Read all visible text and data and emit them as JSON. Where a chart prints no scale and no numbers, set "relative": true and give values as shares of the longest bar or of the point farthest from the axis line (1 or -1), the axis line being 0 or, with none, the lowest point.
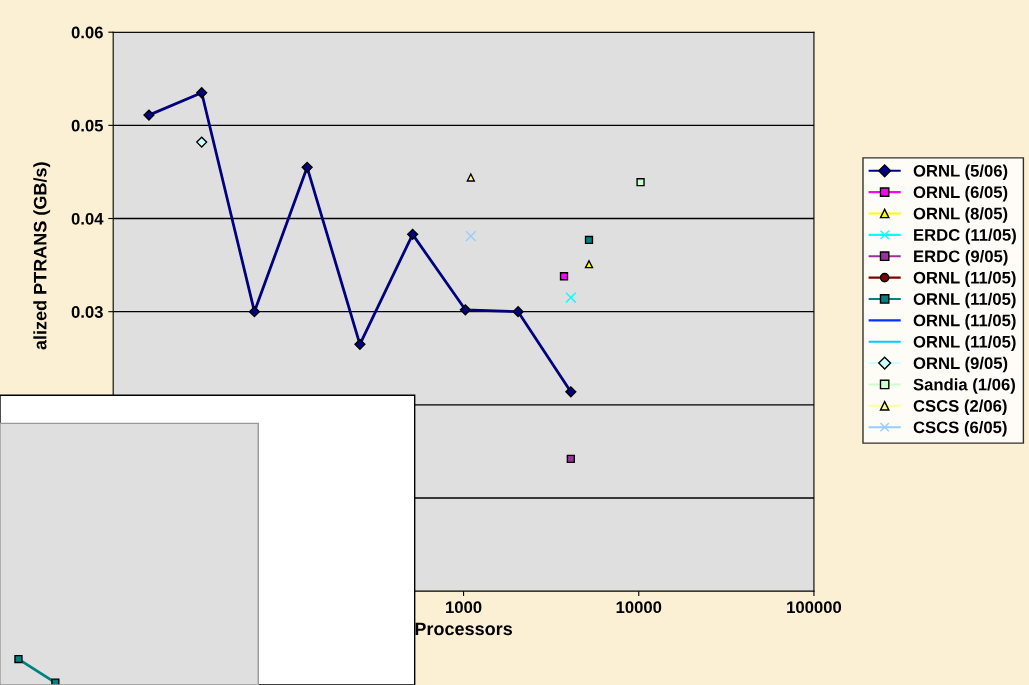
{
  "chart_data": [
    {
      "type": "line",
      "xlabel": "Processors",
      "ylabel": "alized PTRANS (GB/s)",
      "log": "x",
      "xlim": [
        10,
        100000
      ],
      "xticks": [
        1000,
        10000,
        100000
      ],
      "ylim": [
        0,
        0.06
      ],
      "yticks": [
        {
          "value": 0.01,
          "label": null
        },
        {
          "value": 0.02,
          "label": null
        },
        0.03,
        0.04,
        0.05,
        0.06
      ],
      "grid": "y",
      "legend": "right",
      "series": [
        {
          "name": "ORNL (5/06)",
          "color": "#000080",
          "marker": "diamond",
          "x": [
            16,
            32,
            64,
            128,
            256,
            512,
            1024,
            2048,
            4096
          ],
          "values": [
            0.0511,
            0.0535,
            0.03,
            0.0455,
            0.0265,
            0.0383,
            0.0302,
            0.03,
            0.0214
          ]
        },
        {
          "name": "ORNL (6/05)",
          "color": "#ff00ff",
          "type": "scatter",
          "marker": "square",
          "x": [
            3744
          ],
          "values": [
            0.0338
          ]
        },
        {
          "name": "ORNL (8/05)",
          "color": "#ffff00",
          "type": "scatter",
          "marker": "triangle",
          "x": [
            5200
          ],
          "values": [
            0.0351
          ]
        },
        {
          "name": "ERDC (11/05)",
          "color": "#00ffff",
          "type": "scatter",
          "marker": "cross",
          "x": [
            4096
          ],
          "values": [
            0.0315
          ]
        },
        {
          "name": "ERDC (9/05)",
          "color": "#993399",
          "type": "scatter",
          "marker": "square",
          "x": [
            4096
          ],
          "values": [
            0.0142
          ]
        },
        {
          "name": "ORNL (11/05)",
          "color": "#800000",
          "type": "scatter",
          "marker": "circle"
        },
        {
          "name": "ORNL (11/05)",
          "color": "#008080",
          "type": "scatter",
          "marker": "square",
          "x": [
            5200
          ],
          "values": [
            0.0377
          ]
        },
        {
          "name": "ORNL (11/05)",
          "color": "#0033ff",
          "type": "scatter",
          "marker": "none"
        },
        {
          "name": "ORNL (11/05)",
          "color": "#00ccff",
          "type": "scatter",
          "marker": "none"
        },
        {
          "name": "ORNL (9/05)",
          "color": "#ccffff",
          "type": "scatter",
          "marker": "diamond",
          "x": [
            32
          ],
          "values": [
            0.0482
          ]
        },
        {
          "name": "Sandia (1/06)",
          "color": "#ccffcc",
          "type": "scatter",
          "marker": "square",
          "x": [
            10240
          ],
          "values": [
            0.0439
          ]
        },
        {
          "name": "CSCS (2/06)",
          "color": "#ffff99",
          "type": "scatter",
          "marker": "triangle",
          "x": [
            1100
          ],
          "values": [
            0.0444
          ]
        },
        {
          "name": "CSCS (6/05)",
          "color": "#99ccff",
          "type": "scatter",
          "marker": "cross",
          "x": [
            1100
          ],
          "values": [
            0.0381
          ]
        }
      ]
    },
    {
      "type": "line",
      "relative": true,
      "marker": "square",
      "categories": [
        null,
        null,
        null,
        null,
        null,
        null,
        null
      ],
      "series": [
        {
          "color": "#008080",
          "values": [
            1,
            0,
            null,
            null,
            null,
            null,
            null
          ]
        }
      ]
    }
  ]
}
